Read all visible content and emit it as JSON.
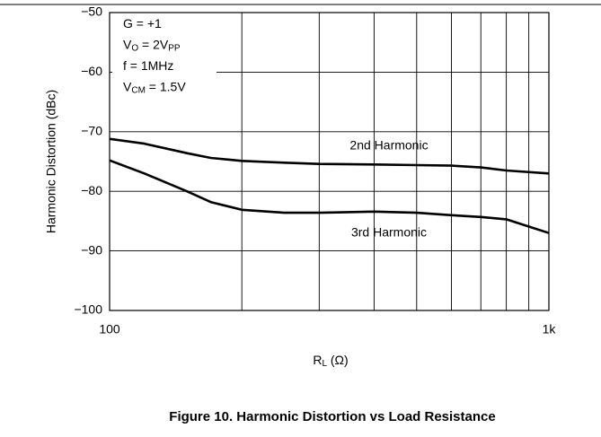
{
  "chart_data": {
    "type": "line",
    "caption": "Figure 10. Harmonic Distortion vs Load Resistance",
    "ylabel": "Harmonic Distortion (dBc)",
    "xlabel": [
      {
        "text": "R"
      },
      {
        "text": "L",
        "sub": true
      },
      {
        "text": " (Ω)"
      }
    ],
    "annotations": [
      [
        {
          "text": "G = +1"
        }
      ],
      [
        {
          "text": "V"
        },
        {
          "text": "O",
          "sub": true
        },
        {
          "text": " = 2V"
        },
        {
          "text": "PP",
          "sub": true
        }
      ],
      [
        {
          "text": "f = 1MHz"
        }
      ],
      [
        {
          "text": "V"
        },
        {
          "text": "CM",
          "sub": true
        },
        {
          "text": " = 1.5V"
        }
      ]
    ],
    "x": [
      100,
      120,
      150,
      170,
      200,
      250,
      300,
      400,
      500,
      600,
      700,
      800,
      1000
    ],
    "series": [
      {
        "name": "2nd Harmonic",
        "color": "#000000",
        "values": [
          -71.2,
          -72,
          -73.6,
          -74.4,
          -74.9,
          -75.2,
          -75.4,
          -75.5,
          -75.6,
          -75.7,
          -76,
          -76.5,
          -77
        ]
      },
      {
        "name": "3rd Harmonic",
        "color": "#000000",
        "values": [
          -74.8,
          -77,
          -80,
          -81.8,
          -83.1,
          -83.6,
          -83.6,
          -83.4,
          -83.6,
          -84,
          -84.3,
          -84.7,
          -87
        ]
      }
    ],
    "xscale": "log",
    "xlim": [
      100,
      1000
    ],
    "xticks": [
      100,
      {
        "value": 1000,
        "label": "1k"
      }
    ],
    "xgrid": [
      200,
      300,
      400,
      500,
      600,
      700,
      800,
      900
    ],
    "ylim": [
      -100,
      -50
    ],
    "yticks": [
      {
        "value": -50,
        "label": "−50"
      },
      {
        "value": -60,
        "label": "−60"
      },
      {
        "value": -70,
        "label": "−70"
      },
      {
        "value": -80,
        "label": "−80"
      },
      {
        "value": -90,
        "label": "−90"
      },
      {
        "value": -100,
        "label": "−100"
      }
    ],
    "grid": true
  }
}
